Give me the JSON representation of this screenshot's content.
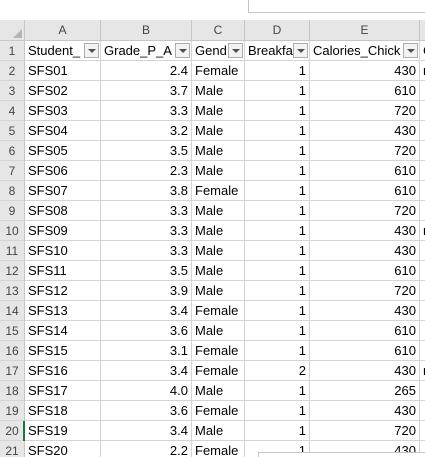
{
  "columns": [
    "A",
    "B",
    "C",
    "D",
    "E"
  ],
  "header_row": {
    "row_number": "1",
    "cells": [
      "Student_",
      "Grade_P_A",
      "Gend",
      "Breakfa",
      "Calories_Chick"
    ],
    "f_partial": "C"
  },
  "rows": [
    {
      "n": "2",
      "id": "SFS01",
      "gpa": "2.4",
      "gender": "Female",
      "breakfast": "1",
      "calories": "430",
      "f": "n"
    },
    {
      "n": "3",
      "id": "SFS02",
      "gpa": "3.7",
      "gender": "Male",
      "breakfast": "1",
      "calories": "610",
      "f": ""
    },
    {
      "n": "4",
      "id": "SFS03",
      "gpa": "3.3",
      "gender": "Male",
      "breakfast": "1",
      "calories": "720",
      "f": ""
    },
    {
      "n": "5",
      "id": "SFS04",
      "gpa": "3.2",
      "gender": "Male",
      "breakfast": "1",
      "calories": "430",
      "f": ""
    },
    {
      "n": "6",
      "id": "SFS05",
      "gpa": "3.5",
      "gender": "Male",
      "breakfast": "1",
      "calories": "720",
      "f": ""
    },
    {
      "n": "7",
      "id": "SFS06",
      "gpa": "2.3",
      "gender": "Male",
      "breakfast": "1",
      "calories": "610",
      "f": ""
    },
    {
      "n": "8",
      "id": "SFS07",
      "gpa": "3.8",
      "gender": "Female",
      "breakfast": "1",
      "calories": "610",
      "f": ""
    },
    {
      "n": "9",
      "id": "SFS08",
      "gpa": "3.3",
      "gender": "Male",
      "breakfast": "1",
      "calories": "720",
      "f": ""
    },
    {
      "n": "10",
      "id": "SFS09",
      "gpa": "3.3",
      "gender": "Male",
      "breakfast": "1",
      "calories": "430",
      "f": "n"
    },
    {
      "n": "11",
      "id": "SFS10",
      "gpa": "3.3",
      "gender": "Male",
      "breakfast": "1",
      "calories": "430",
      "f": ""
    },
    {
      "n": "12",
      "id": "SFS11",
      "gpa": "3.5",
      "gender": "Male",
      "breakfast": "1",
      "calories": "610",
      "f": ""
    },
    {
      "n": "13",
      "id": "SFS12",
      "gpa": "3.9",
      "gender": "Male",
      "breakfast": "1",
      "calories": "720",
      "f": ""
    },
    {
      "n": "14",
      "id": "SFS13",
      "gpa": "3.4",
      "gender": "Female",
      "breakfast": "1",
      "calories": "430",
      "f": ""
    },
    {
      "n": "15",
      "id": "SFS14",
      "gpa": "3.6",
      "gender": "Male",
      "breakfast": "1",
      "calories": "610",
      "f": ""
    },
    {
      "n": "16",
      "id": "SFS15",
      "gpa": "3.1",
      "gender": "Female",
      "breakfast": "1",
      "calories": "610",
      "f": ""
    },
    {
      "n": "17",
      "id": "SFS16",
      "gpa": "3.4",
      "gender": "Female",
      "breakfast": "2",
      "calories": "430",
      "f": "n"
    },
    {
      "n": "18",
      "id": "SFS17",
      "gpa": "4.0",
      "gender": "Male",
      "breakfast": "1",
      "calories": "265",
      "f": ""
    },
    {
      "n": "19",
      "id": "SFS18",
      "gpa": "3.6",
      "gender": "Female",
      "breakfast": "1",
      "calories": "430",
      "f": ""
    },
    {
      "n": "20",
      "id": "SFS19",
      "gpa": "3.4",
      "gender": "Male",
      "breakfast": "1",
      "calories": "720",
      "f": ""
    },
    {
      "n": "21",
      "id": "SFS20",
      "gpa": "2.2",
      "gender": "Female",
      "breakfast": "1",
      "calories": "430",
      "f": ""
    }
  ],
  "colors": {
    "header_bg": "#e6e6e6",
    "gridline": "#d4d4d4",
    "selection_accent": "#217346"
  }
}
